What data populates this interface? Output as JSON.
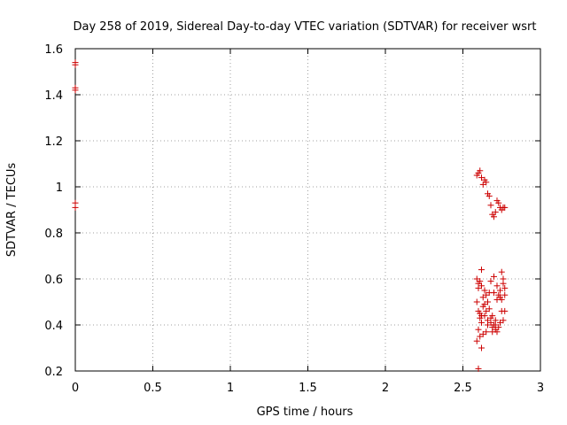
{
  "chart_data": {
    "type": "scatter",
    "title": "Day 258 of 2019, Sidereal Day-to-day VTEC variation (SDTVAR) for receiver wsrt",
    "xlabel": "GPS time / hours",
    "ylabel": "SDTVAR / TECUs",
    "xlim": [
      0,
      3
    ],
    "ylim": [
      0.2,
      1.6
    ],
    "xticks": [
      "0",
      "0.5",
      "1",
      "1.5",
      "2",
      "2.5",
      "3"
    ],
    "yticks": [
      "0.2",
      "0.4",
      "0.6",
      "0.8",
      "1",
      "1.2",
      "1.4",
      "1.6"
    ],
    "grid": true,
    "marker": "+",
    "color": "#cc0000",
    "series": [
      {
        "points": [
          [
            0.0,
            1.54
          ],
          [
            0.0,
            1.53
          ],
          [
            0.0,
            1.43
          ],
          [
            0.0,
            1.42
          ],
          [
            0.0,
            0.93
          ],
          [
            0.0,
            0.91
          ],
          [
            2.59,
            1.05
          ],
          [
            2.6,
            1.06
          ],
          [
            2.61,
            1.07
          ],
          [
            2.62,
            1.04
          ],
          [
            2.63,
            1.01
          ],
          [
            2.64,
            1.03
          ],
          [
            2.65,
            1.02
          ],
          [
            2.66,
            0.97
          ],
          [
            2.67,
            0.96
          ],
          [
            2.68,
            0.92
          ],
          [
            2.69,
            0.88
          ],
          [
            2.7,
            0.87
          ],
          [
            2.71,
            0.89
          ],
          [
            2.72,
            0.94
          ],
          [
            2.73,
            0.93
          ],
          [
            2.74,
            0.91
          ],
          [
            2.75,
            0.9
          ],
          [
            2.76,
            0.91
          ],
          [
            2.77,
            0.91
          ],
          [
            2.59,
            0.6
          ],
          [
            2.6,
            0.58
          ],
          [
            2.6,
            0.56
          ],
          [
            2.61,
            0.59
          ],
          [
            2.62,
            0.64
          ],
          [
            2.62,
            0.57
          ],
          [
            2.59,
            0.5
          ],
          [
            2.6,
            0.46
          ],
          [
            2.61,
            0.45
          ],
          [
            2.61,
            0.43
          ],
          [
            2.62,
            0.44
          ],
          [
            2.62,
            0.41
          ],
          [
            2.63,
            0.48
          ],
          [
            2.63,
            0.52
          ],
          [
            2.64,
            0.49
          ],
          [
            2.64,
            0.55
          ],
          [
            2.65,
            0.46
          ],
          [
            2.65,
            0.53
          ],
          [
            2.66,
            0.42
          ],
          [
            2.66,
            0.5
          ],
          [
            2.67,
            0.47
          ],
          [
            2.67,
            0.54
          ],
          [
            2.68,
            0.59
          ],
          [
            2.68,
            0.41
          ],
          [
            2.69,
            0.39
          ],
          [
            2.69,
            0.44
          ],
          [
            2.7,
            0.4
          ],
          [
            2.7,
            0.54
          ],
          [
            2.7,
            0.61
          ],
          [
            2.71,
            0.38
          ],
          [
            2.71,
            0.42
          ],
          [
            2.72,
            0.37
          ],
          [
            2.72,
            0.51
          ],
          [
            2.72,
            0.57
          ],
          [
            2.73,
            0.39
          ],
          [
            2.73,
            0.53
          ],
          [
            2.74,
            0.41
          ],
          [
            2.74,
            0.52
          ],
          [
            2.74,
            0.55
          ],
          [
            2.75,
            0.46
          ],
          [
            2.75,
            0.63
          ],
          [
            2.75,
            0.51
          ],
          [
            2.76,
            0.58
          ],
          [
            2.76,
            0.6
          ],
          [
            2.76,
            0.42
          ],
          [
            2.77,
            0.56
          ],
          [
            2.77,
            0.46
          ],
          [
            2.77,
            0.53
          ],
          [
            2.6,
            0.38
          ],
          [
            2.61,
            0.35
          ],
          [
            2.62,
            0.3
          ],
          [
            2.63,
            0.36
          ],
          [
            2.59,
            0.33
          ],
          [
            2.6,
            0.21
          ],
          [
            2.66,
            0.4
          ],
          [
            2.68,
            0.43
          ],
          [
            2.69,
            0.37
          ],
          [
            2.71,
            0.4
          ],
          [
            2.65,
            0.37
          ],
          [
            2.64,
            0.44
          ]
        ]
      }
    ]
  }
}
